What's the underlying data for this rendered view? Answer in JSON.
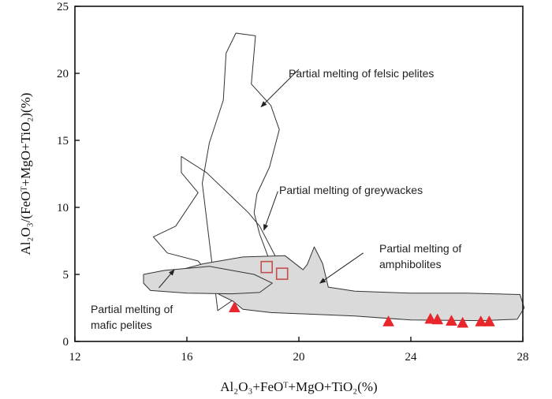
{
  "chart_data": {
    "type": "scatter",
    "title": "",
    "xlabel": "Al₂O₃+FeOᵀ+MgO+TiO₂(%)",
    "ylabel": "Al₂O₃/(FeOᵀ+MgO+TiO₂)(%)",
    "xlim": [
      12,
      28
    ],
    "ylim": [
      0,
      25
    ],
    "xticks": [
      "12",
      "16",
      "20",
      "24",
      "28"
    ],
    "yticks": [
      "0",
      "5",
      "10",
      "15",
      "20",
      "25"
    ],
    "grid": false,
    "legend": "none",
    "series": [
      {
        "marker": "square-open",
        "color": "#c0504d",
        "x": [
          18.85,
          19.4
        ],
        "y": [
          5.55,
          5.05
        ]
      },
      {
        "marker": "triangle-filled",
        "color": "#e8262b",
        "x": [
          17.7,
          23.2,
          24.7,
          24.95,
          25.45,
          25.85,
          26.5,
          26.8
        ],
        "y": [
          2.5,
          1.45,
          1.65,
          1.6,
          1.5,
          1.35,
          1.45,
          1.45
        ]
      }
    ],
    "regions": [
      {
        "label": "Partial melting of felsic pelites",
        "fill": "none",
        "points": [
          [
            17.1,
            2.3
          ],
          [
            16.55,
            11.8
          ],
          [
            16.8,
            14.8
          ],
          [
            17.3,
            18.0
          ],
          [
            17.4,
            21.5
          ],
          [
            17.75,
            23.0
          ],
          [
            18.45,
            22.8
          ],
          [
            18.3,
            19.2
          ],
          [
            19.0,
            17.6
          ],
          [
            19.3,
            15.8
          ],
          [
            18.95,
            13.0
          ],
          [
            18.5,
            11.0
          ],
          [
            18.4,
            9.6
          ],
          [
            18.6,
            8.0
          ],
          [
            19.1,
            5.2
          ],
          [
            17.1,
            2.3
          ]
        ]
      },
      {
        "label": "Partial melting of greywackes",
        "fill": "none",
        "points": [
          [
            15.8,
            13.8
          ],
          [
            15.8,
            12.6
          ],
          [
            16.4,
            11.1
          ],
          [
            15.6,
            8.6
          ],
          [
            14.8,
            7.8
          ],
          [
            15.3,
            6.6
          ],
          [
            16.4,
            6.0
          ],
          [
            17.2,
            4.0
          ],
          [
            17.95,
            2.8
          ],
          [
            18.4,
            3.0
          ],
          [
            18.85,
            3.6
          ],
          [
            19.7,
            4.2
          ],
          [
            20.1,
            3.95
          ],
          [
            19.6,
            4.85
          ],
          [
            19.2,
            6.2
          ],
          [
            18.6,
            8.6
          ],
          [
            18.2,
            9.6
          ],
          [
            16.7,
            12.6
          ],
          [
            15.8,
            13.8
          ]
        ]
      },
      {
        "label": "Partial melting of amphibolites",
        "fill": "#dadada",
        "points": [
          [
            15.5,
            5.2
          ],
          [
            16.6,
            5.8
          ],
          [
            18.0,
            6.3
          ],
          [
            19.5,
            6.4
          ],
          [
            20.15,
            5.35
          ],
          [
            20.3,
            5.75
          ],
          [
            20.55,
            7.05
          ],
          [
            20.85,
            5.8
          ],
          [
            21.05,
            4.05
          ],
          [
            22.0,
            3.75
          ],
          [
            24.0,
            3.6
          ],
          [
            26.0,
            3.6
          ],
          [
            27.9,
            3.5
          ],
          [
            28.05,
            2.5
          ],
          [
            27.8,
            1.65
          ],
          [
            26.5,
            1.55
          ],
          [
            24.0,
            1.6
          ],
          [
            22.0,
            1.9
          ],
          [
            19.0,
            2.15
          ],
          [
            18.0,
            2.4
          ],
          [
            17.65,
            3.0
          ],
          [
            17.25,
            3.4
          ],
          [
            16.5,
            4.3
          ],
          [
            15.6,
            5.0
          ],
          [
            15.5,
            5.2
          ]
        ]
      },
      {
        "label": "Partial melting of mafic pelites",
        "fill": "#dadada",
        "points": [
          [
            14.45,
            4.35
          ],
          [
            14.45,
            5.0
          ],
          [
            15.2,
            5.3
          ],
          [
            16.8,
            5.6
          ],
          [
            18.4,
            5.0
          ],
          [
            19.05,
            4.35
          ],
          [
            18.6,
            3.65
          ],
          [
            17.6,
            3.55
          ],
          [
            16.0,
            3.6
          ],
          [
            14.7,
            3.8
          ],
          [
            14.45,
            4.35
          ]
        ]
      }
    ],
    "annotations": [
      {
        "text": "Partial melting of felsic pelites",
        "arrow_to": [
          18.65,
          17.5
        ],
        "text_at": [
          20.0,
          20.3
        ]
      },
      {
        "text": "Partial melting of greywackes",
        "arrow_to": [
          18.75,
          8.3
        ],
        "text_at": [
          19.25,
          11.2
        ]
      },
      {
        "text": "Partial melting of",
        "text2": "amphibolites",
        "arrow_to": [
          20.75,
          4.35
        ],
        "text_at": [
          22.5,
          6.95
        ]
      },
      {
        "text": "Partial melting of",
        "text2": "mafic pelites",
        "arrow_to": [
          15.55,
          5.35
        ],
        "text_at": [
          13.0,
          3.75
        ]
      }
    ]
  }
}
